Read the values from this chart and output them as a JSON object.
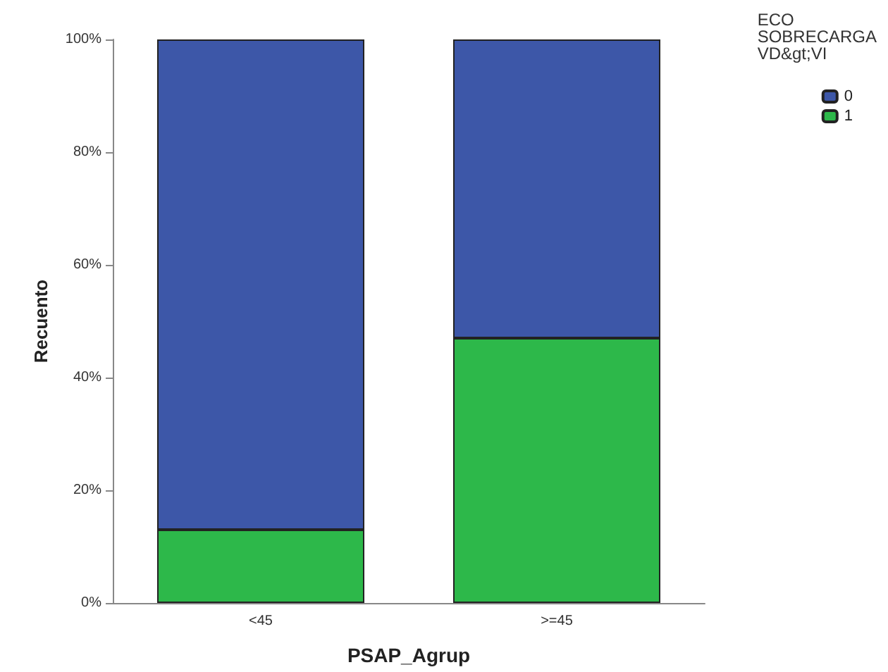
{
  "chart_data": {
    "type": "bar",
    "stacked": true,
    "xlabel": "PSAP_Agrup",
    "ylabel": "Recuento",
    "legend_title": "ECO\nSOBRECARGA\nVD&gt;VI",
    "legend": "top right",
    "grid": false,
    "categories": [
      "<45",
      ">=45"
    ],
    "series": [
      {
        "name": "1",
        "color": "#2db84a",
        "values": [
          13,
          47
        ]
      },
      {
        "name": "0",
        "color": "#3d57a8",
        "values": [
          87,
          53
        ]
      }
    ],
    "ylim": [
      0,
      100
    ],
    "yticks": [
      {
        "value": 0,
        "label": "0%"
      },
      {
        "value": 20,
        "label": "20%"
      },
      {
        "value": 40,
        "label": "40%"
      },
      {
        "value": 60,
        "label": "60%"
      },
      {
        "value": 80,
        "label": "80%"
      },
      {
        "value": 100,
        "label": "100%"
      }
    ]
  }
}
